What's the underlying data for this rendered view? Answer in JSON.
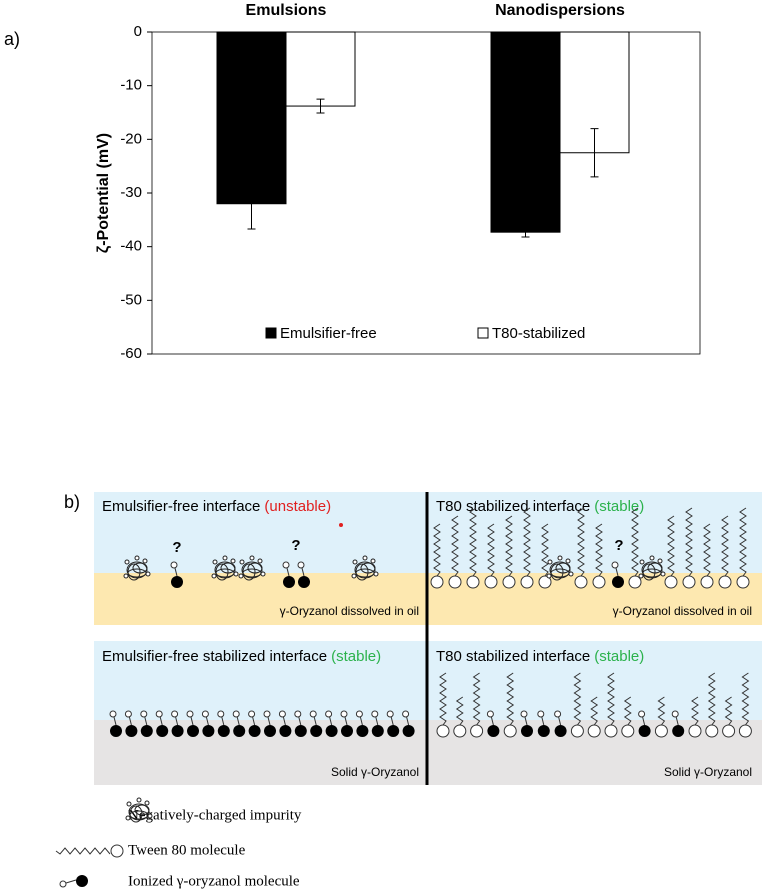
{
  "chart_data": {
    "type": "bar",
    "panel_label": "a)",
    "ylabel": "ζ-Potential (mV)",
    "categories": [
      "Emulsions",
      "Nanodispersions"
    ],
    "series": [
      {
        "name": "Emulsifier-free",
        "color": "#000000",
        "values": [
          -32,
          -37.3
        ],
        "errors": [
          4.7,
          0.9
        ]
      },
      {
        "name": "T80-stabilized",
        "color": "#ffffff",
        "values": [
          -13.8,
          -22.5
        ],
        "errors": [
          1.3,
          4.5
        ]
      }
    ],
    "ylim": [
      -60,
      0
    ],
    "yticks": [
      0,
      -10,
      -20,
      -30,
      -40,
      -50,
      -60
    ],
    "grid": false,
    "legend": "bottom"
  },
  "diagram": {
    "panel_label": "b)",
    "panels": [
      {
        "title": "Emulsifier-free interface",
        "status": "(unstable)",
        "phase": "γ-Oryzanol dissolved in oil"
      },
      {
        "title": "T80 stabilized interface",
        "status": "(stable)",
        "phase": "γ-Oryzanol dissolved in oil"
      },
      {
        "title": "Emulsifier-free stabilized interface",
        "status": "(stable)",
        "phase": "Solid γ-Oryzanol"
      },
      {
        "title": "T80 stabilized interface",
        "status": "(stable)",
        "phase": "Solid γ-Oryzanol"
      }
    ],
    "question_marks": [
      "?",
      "?",
      "?"
    ],
    "legend": [
      "Negatively-charged impurity",
      "Tween 80 molecule",
      "Ionized γ-oryzanol molecule"
    ]
  }
}
